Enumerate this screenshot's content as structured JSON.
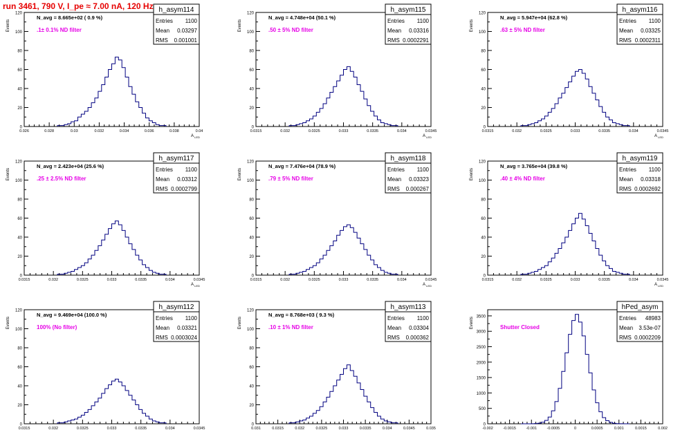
{
  "page_title": "run 3461,   790 V, I_pe ≈ 7.00 nA, 120 Hz",
  "colors": {
    "title": "#e60000",
    "histogram": "#000080",
    "annotation": "#e600e6",
    "axis": "#000000"
  },
  "chart_data": [
    {
      "type": "histogram",
      "stats_title": "h_asym114",
      "entries": "1100",
      "mean": "0.03297",
      "rms": "0.001001",
      "navg_label": "N_avg = 8.665e+02 ( 0.9 %)",
      "annotation": ".1± 0.1% ND filter",
      "ylabel": "Events",
      "xlabel": "A",
      "xlabel_sub": "LED",
      "xlim": [
        0.026,
        0.04
      ],
      "ylim": [
        0,
        120
      ],
      "xticks": [
        "0.026",
        "0.028",
        "0.03",
        "0.032",
        "0.034",
        "0.036",
        "0.038",
        "0.04"
      ],
      "yticks": [
        "0",
        "20",
        "40",
        "60",
        "80",
        "100",
        "120"
      ],
      "peak": 73,
      "y": [
        1,
        1,
        2,
        3,
        5,
        6,
        10,
        13,
        16,
        20,
        25,
        30,
        37,
        44,
        52,
        60,
        66,
        73,
        70,
        62,
        52,
        42,
        34,
        26,
        20,
        14,
        9,
        6,
        4,
        2,
        1,
        1
      ]
    },
    {
      "type": "histogram",
      "stats_title": "h_asym115",
      "entries": "1100",
      "mean": "0.03316",
      "rms": "0.0002291",
      "navg_label": "N_avg = 4.748e+04 (50.1 %)",
      "annotation": ".50 ± 5% ND filter",
      "ylabel": "Events",
      "xlabel": "A",
      "xlabel_sub": "LED",
      "xlim": [
        0.0315,
        0.0345
      ],
      "ylim": [
        0,
        120
      ],
      "xticks": [
        "0.0315",
        "0.032",
        "0.0325",
        "0.033",
        "0.0335",
        "0.034",
        "0.0345"
      ],
      "yticks": [
        "0",
        "20",
        "40",
        "60",
        "80",
        "100",
        "120"
      ],
      "peak": 63,
      "y": [
        1,
        1,
        2,
        3,
        4,
        6,
        8,
        11,
        15,
        19,
        24,
        30,
        36,
        42,
        48,
        54,
        60,
        63,
        58,
        52,
        44,
        37,
        29,
        22,
        16,
        11,
        7,
        4,
        3,
        2,
        1,
        1
      ]
    },
    {
      "type": "histogram",
      "stats_title": "h_asym116",
      "entries": "1100",
      "mean": "0.03325",
      "rms": "0.0002311",
      "navg_label": "N_avg = 5.947e+04 (62.8 %)",
      "annotation": ".63 ± 5% ND filter",
      "ylabel": "Events",
      "xlabel": "A",
      "xlabel_sub": "LED",
      "xlim": [
        0.0315,
        0.0345
      ],
      "ylim": [
        0,
        120
      ],
      "xticks": [
        "0.0315",
        "0.032",
        "0.0325",
        "0.033",
        "0.0335",
        "0.034",
        "0.0345"
      ],
      "yticks": [
        "0",
        "20",
        "40",
        "60",
        "80",
        "100",
        "120"
      ],
      "peak": 60,
      "y": [
        1,
        1,
        2,
        3,
        4,
        6,
        8,
        11,
        15,
        19,
        24,
        30,
        35,
        41,
        47,
        53,
        58,
        60,
        56,
        50,
        42,
        35,
        28,
        21,
        15,
        10,
        7,
        4,
        3,
        2,
        1,
        1
      ]
    },
    {
      "type": "histogram",
      "stats_title": "h_asym117",
      "entries": "1100",
      "mean": "0.03312",
      "rms": "0.0002799",
      "navg_label": "N_avg = 2.423e+04 (25.6 %)",
      "annotation": ".25 ± 2.5% ND filter",
      "ylabel": "Events",
      "xlabel": "A",
      "xlabel_sub": "LED",
      "xlim": [
        0.0315,
        0.0345
      ],
      "ylim": [
        0,
        120
      ],
      "xticks": [
        "0.0315",
        "0.032",
        "0.0325",
        "0.033",
        "0.0335",
        "0.034",
        "0.0345"
      ],
      "yticks": [
        "0",
        "20",
        "40",
        "60",
        "80",
        "100",
        "120"
      ],
      "peak": 57,
      "y": [
        1,
        1,
        2,
        3,
        4,
        6,
        8,
        10,
        13,
        17,
        21,
        26,
        31,
        37,
        43,
        49,
        54,
        57,
        53,
        47,
        40,
        33,
        27,
        21,
        16,
        11,
        8,
        5,
        3,
        2,
        1,
        1
      ]
    },
    {
      "type": "histogram",
      "stats_title": "h_asym118",
      "entries": "1100",
      "mean": "0.03323",
      "rms": "0.000267",
      "navg_label": "N_avg = 7.476e+04 (78.9 %)",
      "annotation": ".79 ± 5% ND filter",
      "ylabel": "Events",
      "xlabel": "A",
      "xlabel_sub": "LED",
      "xlim": [
        0.0315,
        0.0345
      ],
      "ylim": [
        0,
        120
      ],
      "xticks": [
        "0.0315",
        "0.032",
        "0.0325",
        "0.033",
        "0.0335",
        "0.034",
        "0.0345"
      ],
      "yticks": [
        "0",
        "20",
        "40",
        "60",
        "80",
        "100",
        "120"
      ],
      "peak": 53,
      "y": [
        1,
        1,
        2,
        3,
        4,
        6,
        8,
        10,
        13,
        17,
        21,
        26,
        31,
        36,
        42,
        47,
        51,
        53,
        50,
        45,
        39,
        33,
        27,
        21,
        16,
        11,
        8,
        5,
        3,
        2,
        1,
        1
      ]
    },
    {
      "type": "histogram",
      "stats_title": "h_asym119",
      "entries": "1100",
      "mean": "0.03318",
      "rms": "0.0002692",
      "navg_label": "N_avg = 3.765e+04 (39.8 %)",
      "annotation": ".40 ± 4% ND filter",
      "ylabel": "Events",
      "xlabel": "A",
      "xlabel_sub": "LED",
      "xlim": [
        0.0315,
        0.0345
      ],
      "ylim": [
        0,
        120
      ],
      "xticks": [
        "0.0315",
        "0.032",
        "0.0325",
        "0.033",
        "0.0335",
        "0.034",
        "0.0345"
      ],
      "yticks": [
        "0",
        "20",
        "40",
        "60",
        "80",
        "100",
        "120"
      ],
      "peak": 65,
      "y": [
        1,
        1,
        2,
        3,
        4,
        6,
        8,
        10,
        14,
        18,
        23,
        28,
        34,
        40,
        47,
        54,
        60,
        65,
        59,
        52,
        44,
        36,
        28,
        21,
        15,
        10,
        7,
        4,
        3,
        2,
        1,
        1
      ]
    },
    {
      "type": "histogram",
      "stats_title": "h_asym112",
      "entries": "1100",
      "mean": "0.03321",
      "rms": "0.0003024",
      "navg_label": "N_avg = 9.469e+04 (100.0 %)",
      "annotation": "100% (No filter)",
      "ylabel": "Events",
      "xlabel": "A",
      "xlabel_sub": "LED",
      "xlim": [
        0.0315,
        0.0345
      ],
      "ylim": [
        0,
        120
      ],
      "xticks": [
        "0.0315",
        "0.032",
        "0.0325",
        "0.033",
        "0.0335",
        "0.034",
        "0.0345"
      ],
      "yticks": [
        "0",
        "20",
        "40",
        "60",
        "80",
        "100",
        "120"
      ],
      "peak": 47,
      "y": [
        1,
        1,
        2,
        3,
        4,
        5,
        7,
        9,
        12,
        15,
        19,
        23,
        27,
        32,
        37,
        41,
        45,
        47,
        44,
        40,
        35,
        30,
        25,
        20,
        15,
        11,
        8,
        5,
        3,
        2,
        1,
        1
      ]
    },
    {
      "type": "histogram",
      "stats_title": "h_asym113",
      "entries": "1100",
      "mean": "0.03304",
      "rms": "0.000362",
      "navg_label": "N_avg = 8.768e+03 ( 9.3 %)",
      "annotation": ".10 ± 1% ND filter",
      "ylabel": "Events",
      "xlabel": "A",
      "xlabel_sub": "LED",
      "xlim": [
        0.031,
        0.035
      ],
      "ylim": [
        0,
        120
      ],
      "xticks": [
        "0.031",
        "0.0315",
        "0.032",
        "0.0325",
        "0.033",
        "0.0335",
        "0.034",
        "0.0345",
        "0.035"
      ],
      "yticks": [
        "0",
        "20",
        "40",
        "60",
        "80",
        "100",
        "120"
      ],
      "peak": 62,
      "y": [
        1,
        1,
        2,
        3,
        4,
        6,
        8,
        11,
        14,
        18,
        23,
        28,
        34,
        40,
        46,
        52,
        58,
        62,
        56,
        50,
        43,
        36,
        29,
        23,
        17,
        12,
        8,
        5,
        3,
        2,
        1,
        1
      ]
    },
    {
      "type": "histogram",
      "stats_title": "hPed_asym",
      "entries": "48983",
      "mean": "3.53e-07",
      "rms": "0.0002209",
      "navg_label": "",
      "annotation": "Shutter Closed",
      "ylabel": "Events",
      "xlabel": "A",
      "xlabel_sub": "LED",
      "xlim": [
        -0.002,
        0.002
      ],
      "ylim": [
        0,
        3700
      ],
      "xticks": [
        "-0.002",
        "-0.0015",
        "-0.001",
        "-0.0005",
        "0",
        "0.0005",
        "0.001",
        "0.0015",
        "0.002"
      ],
      "yticks": [
        "0",
        "500",
        "1000",
        "1500",
        "2000",
        "2500",
        "3000",
        "3500"
      ],
      "peak": 3550,
      "y": [
        0,
        0,
        1,
        3,
        8,
        20,
        50,
        110,
        220,
        420,
        720,
        1150,
        1700,
        2300,
        2900,
        3350,
        3550,
        3300,
        2850,
        2250,
        1650,
        1100,
        680,
        390,
        200,
        100,
        45,
        18,
        6,
        2,
        1,
        0
      ]
    }
  ]
}
